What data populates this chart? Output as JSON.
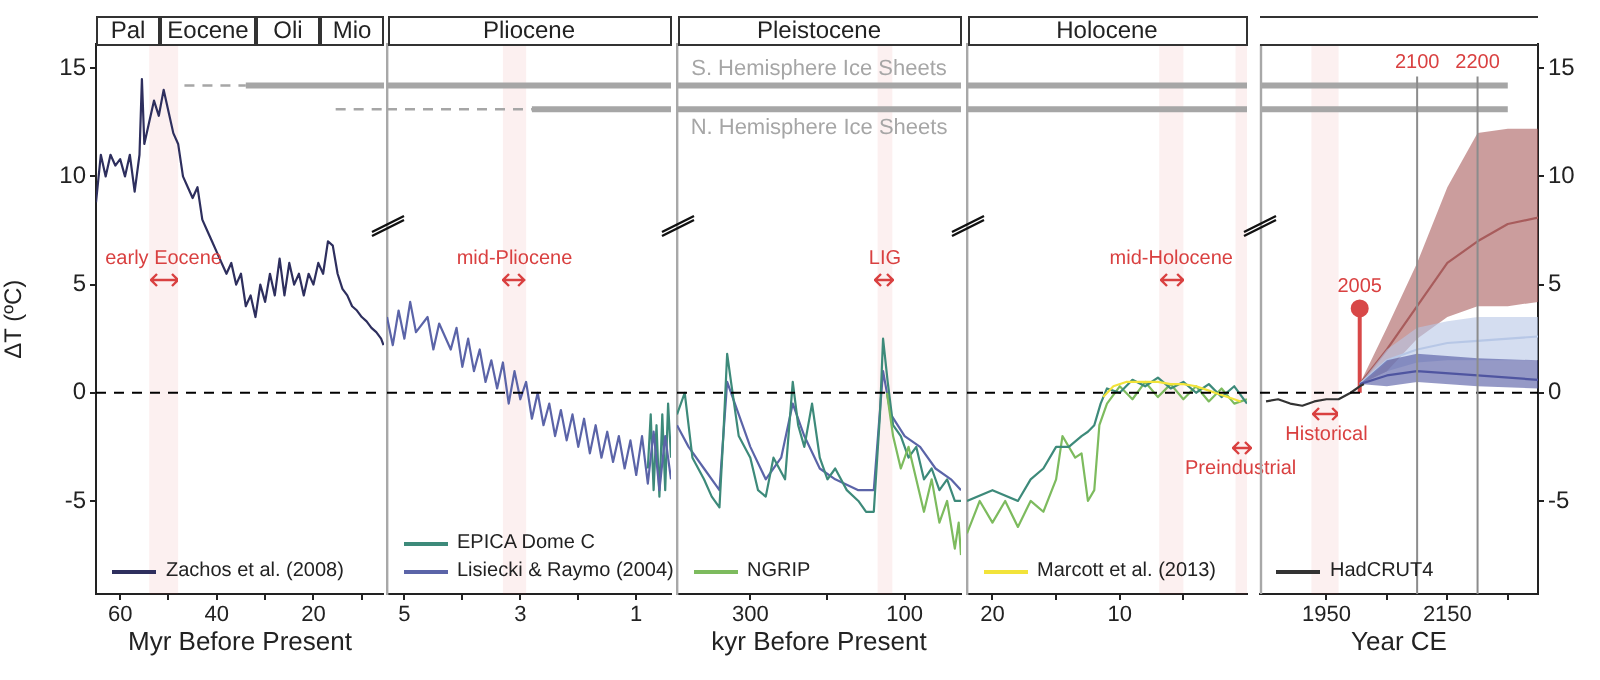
{
  "chart_data": [
    {
      "type": "line",
      "ylabel": "ΔT (ºC)",
      "xlabel": "Myr Before Present",
      "legend": "bottom left",
      "xlim": [
        65,
        5.4
      ],
      "xticks": [
        60,
        {
          "value": 50,
          "label": null
        },
        40,
        {
          "value": 30,
          "label": null
        },
        20,
        {
          "value": 10,
          "label": null
        }
      ],
      "ylim": [
        -9.3,
        16.1
      ],
      "yticks": [
        -5,
        0,
        5,
        10,
        15
      ],
      "annotations": [
        "Pal",
        "Eocene",
        "Oli",
        "Mio"
      ],
      "bands": [
        {
          "axis": "x",
          "from": 54,
          "to": 48,
          "label": "early Eocene",
          "color": "#d94040"
        }
      ],
      "ref_lines": [
        {
          "axis": "y",
          "value": 0,
          "color": "#000000",
          "line_style": "dashed"
        }
      ],
      "series": [
        {
          "type": "step",
          "color": "#a6a6a6",
          "line_style": "dashed",
          "x": [
            46.7,
            34
          ],
          "values": [
            14.2,
            14.2
          ]
        },
        {
          "type": "step",
          "color": "#a6a6a6",
          "x": [
            34,
            5.4
          ],
          "values": [
            14.2,
            14.2
          ]
        },
        {
          "type": "step",
          "color": "#a6a6a6",
          "line_style": "dashed",
          "x": [
            15.4,
            5.4
          ],
          "values": [
            13.1,
            13.1
          ]
        },
        {
          "name": "Zachos et al. (2008)",
          "color": "#2e2f5e",
          "x": [
            65,
            64,
            63,
            62,
            61,
            60,
            59,
            58,
            57,
            56,
            55.5,
            55,
            54,
            53,
            52,
            51,
            50,
            49,
            48,
            47,
            46,
            45,
            44,
            43,
            42,
            41,
            40,
            39,
            38,
            37,
            36,
            35,
            34,
            33,
            32,
            31,
            30,
            29,
            28,
            27,
            26,
            25,
            24,
            23,
            22,
            21,
            20,
            19,
            18,
            17,
            16,
            15,
            14,
            13,
            12,
            11,
            10,
            9,
            8,
            7,
            6,
            5.5
          ],
          "values": [
            8.8,
            11,
            10,
            11,
            10.5,
            10.8,
            10,
            11,
            9.3,
            11,
            14.5,
            11.5,
            12.5,
            13.5,
            12.8,
            14,
            13,
            12,
            11.5,
            10,
            9.5,
            9,
            9.5,
            8,
            7.5,
            7,
            6.5,
            6,
            5.5,
            6,
            5,
            5.5,
            4,
            4.5,
            3.5,
            5,
            4.2,
            5.5,
            4.5,
            6.2,
            4.5,
            6,
            5,
            5.5,
            4.5,
            5.5,
            5,
            6,
            5.5,
            7,
            6.8,
            5.5,
            4.8,
            4.5,
            4,
            3.8,
            3.5,
            3.3,
            3,
            2.8,
            2.5,
            2.2
          ]
        }
      ]
    },
    {
      "type": "line",
      "legend": "bottom left",
      "tick_labels": "x",
      "xlim": [
        5.3,
        0.4
      ],
      "xticks": [
        5,
        {
          "value": 4,
          "label": null
        },
        3,
        {
          "value": 2,
          "label": null
        },
        1
      ],
      "ylim": [
        -9.3,
        16.1
      ],
      "yticks": [
        -5,
        0,
        5,
        10,
        15
      ],
      "annotations": [
        "Pliocene"
      ],
      "bands": [
        {
          "axis": "x",
          "from": 3.3,
          "to": 2.9,
          "label": "mid-Pliocene",
          "color": "#d94040"
        }
      ],
      "ref_lines": [
        {
          "axis": "y",
          "value": 0,
          "color": "#000000",
          "line_style": "dashed"
        }
      ],
      "series": [
        {
          "type": "step",
          "color": "#a6a6a6",
          "x": [
            5.3,
            0.4
          ],
          "values": [
            14.2,
            14.2
          ]
        },
        {
          "type": "step",
          "color": "#a6a6a6",
          "line_style": "dashed",
          "x": [
            5.3,
            2.8
          ],
          "values": [
            13.1,
            13.1
          ]
        },
        {
          "type": "step",
          "color": "#a6a6a6",
          "x": [
            2.8,
            0.4
          ],
          "values": [
            13.1,
            13.1
          ]
        },
        {
          "name": "EPICA Dome C",
          "color": "#3d8a7a",
          "x": [
            0.8,
            0.75,
            0.7,
            0.65,
            0.6,
            0.55,
            0.5,
            0.45,
            0.4
          ],
          "values": [
            -3.5,
            -1,
            -4.5,
            -1.5,
            -4.8,
            -1,
            -4.5,
            -0.5,
            -3
          ]
        },
        {
          "name": "Lisiecki & Raymo (2004)",
          "color": "#5b64a8",
          "x": [
            5.3,
            5.2,
            5.1,
            5,
            4.9,
            4.8,
            4.6,
            4.5,
            4.4,
            4.2,
            4.1,
            4,
            3.9,
            3.8,
            3.7,
            3.6,
            3.5,
            3.4,
            3.3,
            3.2,
            3.1,
            3,
            2.9,
            2.8,
            2.7,
            2.6,
            2.5,
            2.4,
            2.3,
            2.2,
            2.1,
            2,
            1.9,
            1.8,
            1.7,
            1.6,
            1.5,
            1.4,
            1.3,
            1.2,
            1.1,
            1,
            0.9,
            0.8,
            0.7,
            0.6,
            0.5,
            0.4
          ],
          "values": [
            3.5,
            2.2,
            3.8,
            2.5,
            4.2,
            2.8,
            3.5,
            2,
            3.2,
            2,
            3,
            1.2,
            2.5,
            1,
            2,
            0.5,
            1.5,
            0.2,
            1.4,
            -0.5,
            1,
            -0.3,
            0.5,
            -1.2,
            0,
            -1.5,
            -0.5,
            -2,
            -0.8,
            -2.2,
            -1,
            -2.5,
            -1.2,
            -2.8,
            -1.5,
            -3,
            -1.8,
            -3.2,
            -2,
            -3.5,
            -2.2,
            -3.8,
            -2,
            -4.2,
            -1.8,
            -4.5,
            -2,
            -4
          ]
        }
      ]
    },
    {
      "type": "line",
      "xlabel": "kyr Before Present",
      "legend": "bottom left",
      "tick_labels": "x",
      "xlim": [
        395,
        27
      ],
      "xticks": [
        300,
        {
          "value": 200,
          "label": null
        },
        100
      ],
      "ylim": [
        -9.3,
        16.1
      ],
      "yticks": [
        -5,
        0,
        5,
        10,
        15
      ],
      "annotations": [
        "Pleistocene"
      ],
      "bands": [
        {
          "axis": "x",
          "from": 135,
          "to": 116,
          "label": "LIG",
          "color": "#d94040"
        }
      ],
      "ref_lines": [
        {
          "axis": "y",
          "value": 0,
          "color": "#000000",
          "line_style": "dashed"
        }
      ],
      "series": [
        {
          "type": "step",
          "name": "S. Hemisphere Ice Sheets",
          "color": "#a6a6a6",
          "x": [
            395,
            27
          ],
          "values": [
            14.2,
            14.2
          ]
        },
        {
          "type": "step",
          "name": "N. Hemisphere Ice Sheets",
          "color": "#a6a6a6",
          "x": [
            395,
            27
          ],
          "values": [
            13.1,
            13.1
          ]
        },
        {
          "color": "#5b64a8",
          "x": [
            395,
            380,
            360,
            340,
            330,
            320,
            300,
            280,
            260,
            245,
            230,
            210,
            190,
            160,
            140,
            128,
            118,
            100,
            80,
            60,
            40,
            27
          ],
          "values": [
            -1.5,
            -2.5,
            -3.5,
            -4.5,
            0.5,
            -0.5,
            -2.5,
            -4,
            -3,
            -0.5,
            -2,
            -3.5,
            -4,
            -4.5,
            -4.5,
            1,
            -1,
            -2,
            -2.5,
            -3.5,
            -4,
            -4.5
          ]
        },
        {
          "color": "#3d8a7a",
          "x": [
            395,
            385,
            375,
            360,
            350,
            340,
            335,
            330,
            325,
            315,
            300,
            290,
            280,
            270,
            255,
            245,
            238,
            230,
            220,
            210,
            200,
            190,
            175,
            160,
            150,
            140,
            132,
            128,
            122,
            115,
            105,
            95,
            85,
            75,
            65,
            55,
            45,
            35,
            27
          ],
          "values": [
            -1,
            0,
            -3,
            -4,
            -4.8,
            -5.3,
            -2,
            1.8,
            0.5,
            -2,
            -3,
            -4.5,
            -4.8,
            -3,
            -4,
            0.5,
            -1.5,
            -2.5,
            -0.5,
            -3,
            -4,
            -3.5,
            -4.5,
            -5,
            -5.5,
            -5.5,
            -1,
            2.5,
            0.5,
            -1.5,
            -2,
            -3,
            -2.5,
            -4,
            -3.5,
            -4.5,
            -4,
            -5,
            -5
          ]
        },
        {
          "name": "NGRIP",
          "color": "#7dbb5e",
          "x": [
            123,
            115,
            105,
            95,
            85,
            75,
            65,
            55,
            45,
            35,
            30,
            27
          ],
          "values": [
            0,
            -2,
            -3.5,
            -2.5,
            -4,
            -5.5,
            -4,
            -6,
            -5,
            -7.2,
            -6,
            -7.5
          ]
        }
      ]
    },
    {
      "type": "line",
      "legend": "bottom left",
      "tick_labels": "x",
      "xlim": [
        22,
        0
      ],
      "xticks": [
        20,
        {
          "value": 15,
          "label": null
        },
        10,
        {
          "value": 5,
          "label": null
        }
      ],
      "ylim": [
        -9.3,
        16.1
      ],
      "yticks": [
        -5,
        0,
        5,
        10,
        15
      ],
      "bands": [
        {
          "axis": "x",
          "from": 6.9,
          "to": 5,
          "label": "mid-Holocene",
          "color": "#d94040"
        },
        {
          "axis": "x",
          "from": 0.9,
          "to": 0,
          "color": "#d94040"
        }
      ],
      "ref_lines": [
        {
          "axis": "y",
          "value": 0,
          "color": "#000000",
          "line_style": "dashed"
        }
      ],
      "annotations": [
        "Holocene",
        {
          "text": "Preindustrial",
          "x": 0.5,
          "y": -1.9
        }
      ],
      "series": [
        {
          "type": "step",
          "color": "#a6a6a6",
          "x": [
            22,
            0
          ],
          "values": [
            14.2,
            14.2
          ]
        },
        {
          "type": "step",
          "color": "#a6a6a6",
          "x": [
            22,
            0
          ],
          "values": [
            13.1,
            13.1
          ]
        },
        {
          "color": "#7dbb5e",
          "x": [
            22,
            21,
            20,
            19,
            18,
            17,
            16,
            15,
            14.5,
            13.5,
            13,
            12.5,
            12,
            11.6,
            11,
            10,
            9,
            8,
            7,
            6,
            5,
            4,
            3,
            2,
            1,
            0
          ],
          "values": [
            -6.5,
            -5,
            -6,
            -5,
            -6.2,
            -5,
            -5.5,
            -4,
            -2,
            -3,
            -2.8,
            -5,
            -4.5,
            -1.5,
            -0.5,
            0.3,
            -0.3,
            0.5,
            -0.2,
            0.4,
            -0.3,
            0.3,
            -0.4,
            0.2,
            -0.5,
            -0.3
          ]
        },
        {
          "color": "#3d8a7a",
          "x": [
            22,
            20,
            18,
            17,
            16,
            15,
            14,
            13,
            12.5,
            12,
            11.5,
            11,
            10,
            9,
            8,
            7,
            6,
            5,
            4,
            3,
            2,
            1,
            0
          ],
          "values": [
            -5,
            -4.5,
            -5,
            -4,
            -3.5,
            -2.5,
            -2.5,
            -2,
            -1.8,
            -1.5,
            -0.5,
            0.2,
            0,
            0.6,
            0.3,
            0.7,
            0.2,
            0.5,
            0,
            0.4,
            -0.2,
            0.3,
            -0.5
          ]
        },
        {
          "name": "Marcott et al. (2013)",
          "color": "#f2e33a",
          "x": [
            11.3,
            10.5,
            9.5,
            8,
            7,
            6,
            5,
            4,
            3,
            2,
            1,
            0.5
          ],
          "values": [
            -0.2,
            0.3,
            0.5,
            0.5,
            0.5,
            0.4,
            0.4,
            0.3,
            0.1,
            -0.1,
            -0.3,
            -0.4
          ]
        }
      ]
    },
    {
      "type": "line",
      "xlabel": "Year CE",
      "legend": "bottom left",
      "xlim": [
        1840,
        2300
      ],
      "xticks": [
        1950,
        {
          "value": 2050,
          "label": null
        },
        2150,
        {
          "value": 2250,
          "label": null
        }
      ],
      "ylim": [
        -9.3,
        16.1
      ],
      "yticks": [
        -5,
        0,
        5,
        10,
        15
      ],
      "bands": [
        {
          "axis": "x",
          "from": 1925,
          "to": 1970,
          "color": "#d94040"
        }
      ],
      "ref_lines": [
        {
          "axis": "y",
          "value": 0,
          "color": "#000000",
          "line_style": "dashed"
        },
        {
          "axis": "x",
          "value": 2100,
          "label": "2100",
          "color": "#8c8c8c"
        },
        {
          "axis": "x",
          "value": 2200,
          "label": "2200",
          "color": "#8c8c8c"
        }
      ],
      "annotations": [
        {
          "text": "Historical",
          "x": 1950,
          "y": -0.3
        },
        {
          "text": "2005",
          "x": 2005,
          "y": 3.9
        }
      ],
      "series": [
        {
          "color": "#a85c5c",
          "x": [
            2005,
            2050,
            2100,
            2150,
            2200,
            2250,
            2300
          ],
          "values": [
            0.4,
            2,
            4,
            6,
            7,
            7.8,
            8.1
          ],
          "lower": [
            0.4,
            1,
            2.5,
            3.5,
            4,
            4,
            4.2
          ],
          "upper": [
            0.4,
            3,
            6,
            9.5,
            12,
            12.2,
            12.2
          ]
        },
        {
          "color": "#b7c7e6",
          "x": [
            2005,
            2050,
            2100,
            2150,
            2200,
            2300
          ],
          "values": [
            0.4,
            1.5,
            2,
            2.3,
            2.4,
            2.6
          ],
          "lower": [
            0.4,
            1,
            1.4,
            1.5,
            1.5,
            1.5
          ],
          "upper": [
            0.4,
            2,
            3,
            3.3,
            3.5,
            3.5
          ]
        },
        {
          "color": "#4f55a0",
          "x": [
            2005,
            2050,
            2100,
            2200,
            2300
          ],
          "values": [
            0.4,
            0.8,
            1,
            0.8,
            0.6
          ],
          "lower": [
            0.4,
            0.3,
            0.5,
            0.3,
            0.2
          ],
          "upper": [
            0.4,
            1.5,
            1.8,
            1.6,
            1.5
          ]
        },
        {
          "type": "step",
          "color": "#a6a6a6",
          "x": [
            1840,
            2250
          ],
          "values": [
            14.2,
            14.2
          ]
        },
        {
          "type": "step",
          "color": "#a6a6a6",
          "x": [
            1840,
            2250
          ],
          "values": [
            13.1,
            13.1
          ]
        },
        {
          "name": "HadCRUT4",
          "color": "#333333",
          "x": [
            1850,
            1870,
            1890,
            1910,
            1930,
            1950,
            1970,
            1990,
            2005,
            2012
          ],
          "values": [
            -0.4,
            -0.3,
            -0.5,
            -0.6,
            -0.4,
            -0.3,
            -0.3,
            0,
            0.3,
            0.4
          ]
        },
        {
          "type": "lollipop",
          "color": "#d84848",
          "x": [
            2005
          ],
          "values": [
            3.9
          ]
        }
      ]
    }
  ]
}
